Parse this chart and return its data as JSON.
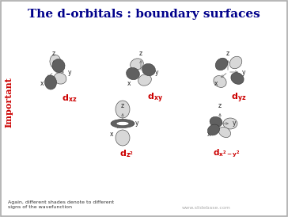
{
  "title": "The d-orbitals : boundary surfaces",
  "title_color": "#00008B",
  "title_fontsize": 11,
  "background_color": "#FFFFFF",
  "border_color": "#888888",
  "important_text": "Important",
  "important_color": "#CC0000",
  "important_fontsize": 8,
  "footnote1": "Again, different shades denote to different",
  "footnote2": "signs of the wavefunction",
  "watermark": "www.slidebase.com",
  "footnote_fontsize": 4.5,
  "label_color": "#CC0000",
  "label_fontsize": 8,
  "axis_label_fontsize": 5.5,
  "lobe_light": "#D8D8D8",
  "lobe_dark": "#606060",
  "lobe_edge": "#333333",
  "bg": "#FFFFFF"
}
